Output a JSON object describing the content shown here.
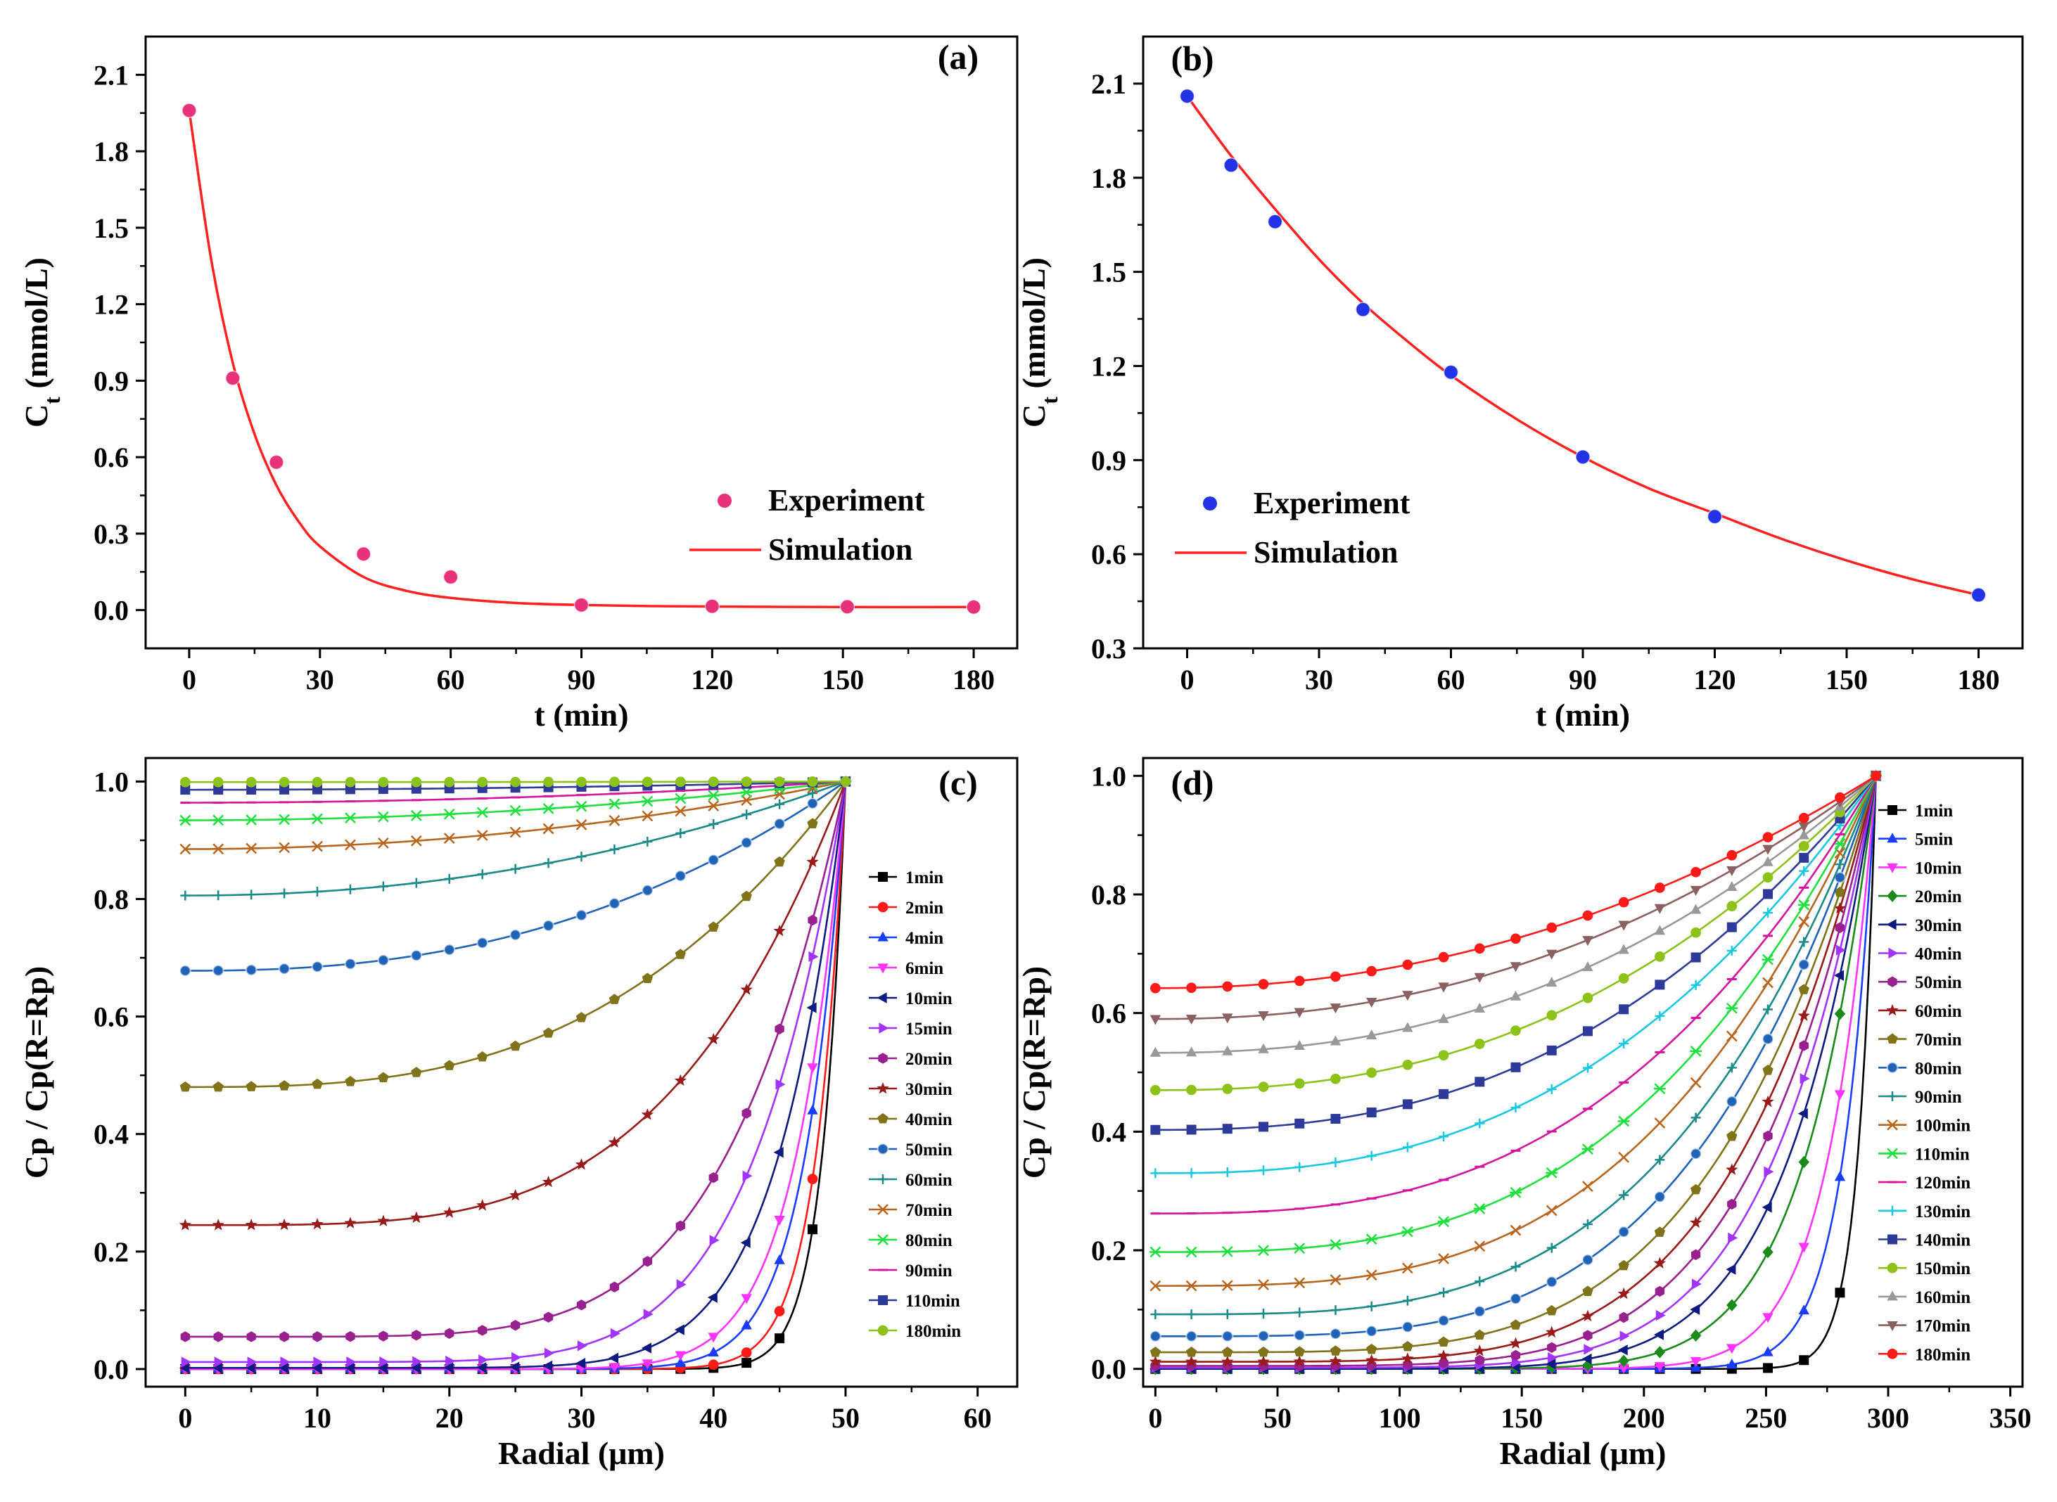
{
  "chart_data": [
    {
      "panel_label": "(a)",
      "type": "scatter",
      "xlabel": "t (min)",
      "ylabel_main": "C",
      "ylabel_sub": "t",
      "ylabel_unit": " (mmol/L)",
      "xlim": [
        -10,
        190
      ],
      "ylim": [
        -0.15,
        2.25
      ],
      "xticks": [
        0,
        30,
        60,
        90,
        120,
        150,
        180
      ],
      "yticks": [
        0.0,
        0.3,
        0.6,
        0.9,
        1.2,
        1.5,
        1.8,
        2.1
      ],
      "ytick_labels": [
        "0.0",
        "0.3",
        "0.6",
        "0.9",
        "1.2",
        "1.5",
        "1.8",
        "2.1"
      ],
      "series": [
        {
          "name": "Experiment",
          "kind": "points",
          "color": "#e8317b",
          "x": [
            0,
            10,
            20,
            40,
            60,
            90,
            120,
            151,
            180
          ],
          "y": [
            1.96,
            0.91,
            0.58,
            0.22,
            0.13,
            0.02,
            0.015,
            0.013,
            0.012
          ]
        },
        {
          "name": "Simulation",
          "kind": "curve",
          "color": "#ff2020",
          "x": [
            0,
            5,
            10,
            15,
            20,
            25,
            30,
            40,
            50,
            60,
            75,
            90,
            105,
            120,
            150,
            180
          ],
          "y": [
            1.96,
            1.38,
            0.97,
            0.69,
            0.49,
            0.35,
            0.25,
            0.13,
            0.075,
            0.048,
            0.028,
            0.02,
            0.016,
            0.014,
            0.012,
            0.012
          ]
        }
      ],
      "legend": [
        "Experiment",
        "Simulation"
      ],
      "legend_position": "lower-right"
    },
    {
      "panel_label": "(b)",
      "type": "scatter",
      "xlabel": "t (min)",
      "ylabel_main": "C",
      "ylabel_sub": "t",
      "ylabel_unit": " (mmol/L)",
      "xlim": [
        -10,
        190
      ],
      "ylim": [
        0.3,
        2.25
      ],
      "xticks": [
        0,
        30,
        60,
        90,
        120,
        150,
        180
      ],
      "yticks": [
        0.3,
        0.6,
        0.9,
        1.2,
        1.5,
        1.8,
        2.1
      ],
      "ytick_labels": [
        "0.3",
        "0.6",
        "0.9",
        "1.2",
        "1.5",
        "1.8",
        "2.1"
      ],
      "series": [
        {
          "name": "Experiment",
          "kind": "points",
          "color": "#2233e6",
          "x": [
            0,
            10,
            20,
            40,
            60,
            90,
            120,
            180
          ],
          "y": [
            2.06,
            1.84,
            1.66,
            1.38,
            1.18,
            0.91,
            0.72,
            0.47
          ]
        },
        {
          "name": "Simulation",
          "kind": "curve",
          "color": "#ff2020",
          "x": [
            0,
            10,
            20,
            30,
            40,
            50,
            60,
            75,
            90,
            105,
            120,
            135,
            150,
            165,
            180
          ],
          "y": [
            2.06,
            1.87,
            1.7,
            1.54,
            1.4,
            1.28,
            1.17,
            1.03,
            0.91,
            0.81,
            0.73,
            0.65,
            0.58,
            0.52,
            0.47
          ]
        }
      ],
      "legend": [
        "Experiment",
        "Simulation"
      ],
      "legend_position": "lower-left"
    },
    {
      "panel_label": "(c)",
      "type": "line",
      "xlabel": "Radial (μm)",
      "ylabel": "Cp / Cp(R=Rp)",
      "xlim": [
        -3,
        63
      ],
      "ylim": [
        -0.03,
        1.04
      ],
      "xticks": [
        0,
        10,
        20,
        30,
        40,
        50,
        60
      ],
      "yticks": [
        0.0,
        0.2,
        0.4,
        0.6,
        0.8,
        1.0
      ],
      "ytick_labels": [
        "0.0",
        "0.2",
        "0.4",
        "0.6",
        "0.8",
        "1.0"
      ],
      "profile_model": {
        "surface_radius": 50,
        "sample_step": 2.5
      },
      "series": [
        {
          "name": "1min",
          "center": 0.0,
          "shape": 28.0,
          "color": "#000000",
          "marker": "square"
        },
        {
          "name": "2min",
          "center": 0.0,
          "shape": 22.0,
          "color": "#ff1a1a",
          "marker": "circle"
        },
        {
          "name": "4min",
          "center": 0.0,
          "shape": 16.0,
          "color": "#1a3cff",
          "marker": "triangle-up"
        },
        {
          "name": "6min",
          "center": 0.0,
          "shape": 13.0,
          "color": "#ff33ff",
          "marker": "triangle-down"
        },
        {
          "name": "10min",
          "center": 0.002,
          "shape": 9.5,
          "color": "#0d1a80",
          "marker": "triangle-left"
        },
        {
          "name": "15min",
          "center": 0.012,
          "shape": 7.0,
          "color": "#a333ff",
          "marker": "triangle-right"
        },
        {
          "name": "20min",
          "center": 0.055,
          "shape": 5.6,
          "color": "#99208f",
          "marker": "hexagon"
        },
        {
          "name": "30min",
          "center": 0.245,
          "shape": 3.9,
          "color": "#991a1a",
          "marker": "star"
        },
        {
          "name": "40min",
          "center": 0.48,
          "shape": 2.9,
          "color": "#80731a",
          "marker": "pentagon"
        },
        {
          "name": "50min",
          "center": 0.678,
          "shape": 2.4,
          "color": "#1f63b8",
          "marker": "circle-ring"
        },
        {
          "name": "60min",
          "center": 0.806,
          "shape": 2.1,
          "color": "#1a8a8a",
          "marker": "plus"
        },
        {
          "name": "70min",
          "center": 0.885,
          "shape": 2.0,
          "color": "#b8661f",
          "marker": "cross"
        },
        {
          "name": "80min",
          "center": 0.934,
          "shape": 2.0,
          "color": "#20e040",
          "marker": "asterisk"
        },
        {
          "name": "90min",
          "center": 0.964,
          "shape": 2.0,
          "color": "#d4149e",
          "marker": "dash"
        },
        {
          "name": "110min",
          "center": 0.986,
          "shape": 2.0,
          "color": "#2e3a99",
          "marker": "square"
        },
        {
          "name": "180min",
          "center": 0.999,
          "shape": 2.0,
          "color": "#8cc21a",
          "marker": "circle"
        }
      ],
      "legend_position": "right"
    },
    {
      "panel_label": "(d)",
      "type": "line",
      "xlabel": "Radial (μm)",
      "ylabel": "Cp / Cp(R=Rp)",
      "xlim": [
        -5,
        355
      ],
      "ylim": [
        -0.03,
        1.03
      ],
      "xticks": [
        0,
        50,
        100,
        150,
        200,
        250,
        300,
        350
      ],
      "yticks": [
        0.0,
        0.2,
        0.4,
        0.6,
        0.8,
        1.0
      ],
      "ytick_labels": [
        "0.0",
        "0.2",
        "0.4",
        "0.6",
        "0.8",
        "1.0"
      ],
      "profile_model": {
        "surface_radius": 295,
        "sample_step": 14.75
      },
      "series": [
        {
          "name": "1min",
          "center": 0.0,
          "shape": 40.0,
          "color": "#000000",
          "marker": "square"
        },
        {
          "name": "5min",
          "center": 0.0,
          "shape": 22.0,
          "color": "#1a3cff",
          "marker": "triangle-up"
        },
        {
          "name": "10min",
          "center": 0.0,
          "shape": 15.0,
          "color": "#ff33ff",
          "marker": "triangle-down"
        },
        {
          "name": "20min",
          "center": 0.0,
          "shape": 10.0,
          "color": "#1a8a1a",
          "marker": "diamond"
        },
        {
          "name": "30min",
          "center": 0.0,
          "shape": 8.0,
          "color": "#0d1a80",
          "marker": "triangle-left"
        },
        {
          "name": "40min",
          "center": 0.002,
          "shape": 6.8,
          "color": "#a333ff",
          "marker": "triangle-right"
        },
        {
          "name": "50min",
          "center": 0.005,
          "shape": 5.8,
          "color": "#99208f",
          "marker": "hexagon"
        },
        {
          "name": "60min",
          "center": 0.012,
          "shape": 5.0,
          "color": "#991a1a",
          "marker": "star"
        },
        {
          "name": "70min",
          "center": 0.028,
          "shape": 4.4,
          "color": "#80731a",
          "marker": "pentagon"
        },
        {
          "name": "80min",
          "center": 0.055,
          "shape": 3.9,
          "color": "#1f63b8",
          "marker": "circle-ring"
        },
        {
          "name": "90min",
          "center": 0.092,
          "shape": 3.5,
          "color": "#1a8a8a",
          "marker": "plus"
        },
        {
          "name": "100min",
          "center": 0.14,
          "shape": 3.2,
          "color": "#b8661f",
          "marker": "cross"
        },
        {
          "name": "110min",
          "center": 0.197,
          "shape": 3.0,
          "color": "#20e040",
          "marker": "asterisk"
        },
        {
          "name": "120min",
          "center": 0.262,
          "shape": 2.8,
          "color": "#d4149e",
          "marker": "dash"
        },
        {
          "name": "130min",
          "center": 0.33,
          "shape": 2.6,
          "color": "#1ac8e0",
          "marker": "plus"
        },
        {
          "name": "140min",
          "center": 0.403,
          "shape": 2.5,
          "color": "#2e3a99",
          "marker": "square"
        },
        {
          "name": "150min",
          "center": 0.47,
          "shape": 2.4,
          "color": "#8cc21a",
          "marker": "circle"
        },
        {
          "name": "160min",
          "center": 0.533,
          "shape": 2.3,
          "color": "#999999",
          "marker": "triangle-up"
        },
        {
          "name": "170min",
          "center": 0.59,
          "shape": 2.2,
          "color": "#8a6060",
          "marker": "triangle-down"
        },
        {
          "name": "180min",
          "center": 0.642,
          "shape": 2.1,
          "color": "#ff1a1a",
          "marker": "circle"
        }
      ],
      "legend_position": "right"
    }
  ]
}
